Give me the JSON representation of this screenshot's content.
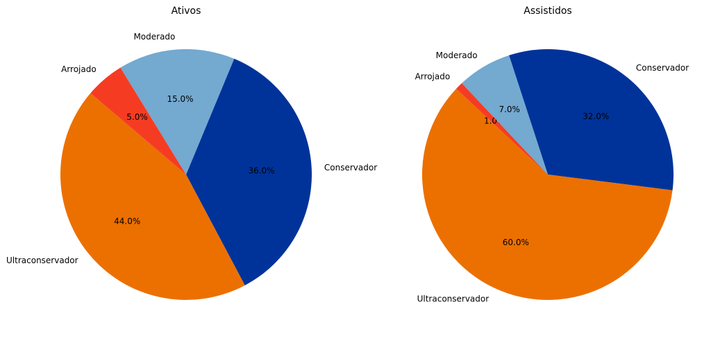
{
  "chart_data": [
    {
      "type": "pie",
      "title": "Ativos",
      "categories": [
        "Conservador",
        "Ultraconservador",
        "Arrojado",
        "Moderado"
      ],
      "values": [
        36.0,
        44.0,
        5.0,
        15.0
      ],
      "value_labels": [
        "36.0%",
        "44.0%",
        "5.0%",
        "15.0%"
      ],
      "colors": [
        "#003399",
        "#EC7000",
        "#F53C23",
        "#74A9D0"
      ],
      "start_angle_deg": 67.5,
      "direction": "clockwise"
    },
    {
      "type": "pie",
      "title": "Assistidos",
      "categories": [
        "Conservador",
        "Ultraconservador",
        "Arrojado",
        "Moderado"
      ],
      "values": [
        32.0,
        60.0,
        1.0,
        7.0
      ],
      "value_labels": [
        "32.0%",
        "60.0%",
        "1.0%",
        "7.0%"
      ],
      "colors": [
        "#003399",
        "#EC7000",
        "#F53C23",
        "#74A9D0"
      ],
      "start_angle_deg": 108,
      "direction": "clockwise"
    }
  ]
}
